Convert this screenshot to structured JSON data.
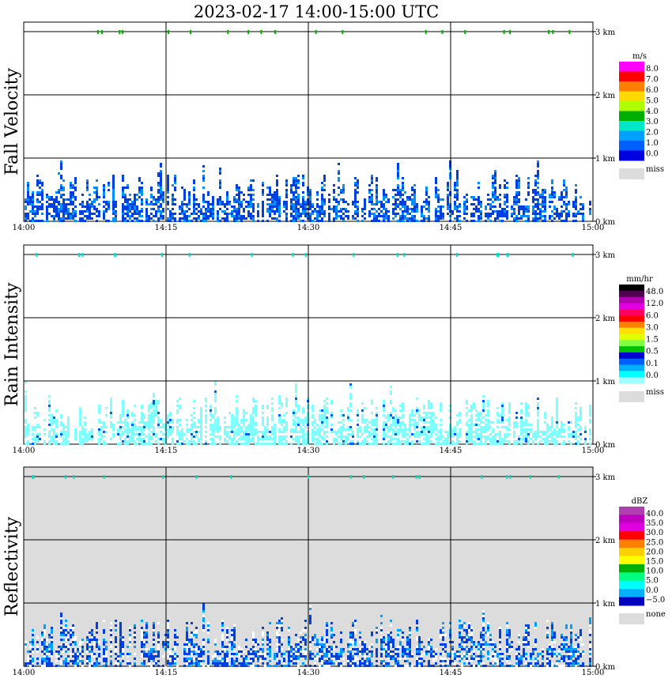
{
  "title": "2023-02-17  14:00-15:00 UTC",
  "chart_data": [
    {
      "type": "heatmap",
      "ylabel": "Fall Velocity",
      "x_ticks": [
        "14:00",
        "14:15",
        "14:30",
        "14:45",
        "15:00"
      ],
      "y_ticks": [
        "0 km",
        "1 km",
        "2 km",
        "3 km"
      ],
      "ylim_km": [
        0,
        3.0
      ],
      "background": "#ffffff",
      "grid": true,
      "colorbar": {
        "unit": "m/s",
        "labels": [
          "8.0",
          "7.0",
          "6.0",
          "5.0",
          "4.0",
          "3.0",
          "2.0",
          "1.0",
          "0.0"
        ],
        "colors": [
          "#ff00ff",
          "#ff0000",
          "#ff8000",
          "#ffd800",
          "#b0ff00",
          "#00b000",
          "#00e8c8",
          "#00a0ff",
          "#0060ff",
          "#0000e0"
        ],
        "miss_label": "miss",
        "miss_color": "#dcdcdc"
      },
      "echo_color": "#0040e0"
    },
    {
      "type": "heatmap",
      "ylabel": "Rain Intensity",
      "x_ticks": [
        "14:00",
        "14:15",
        "14:30",
        "14:45",
        "15:00"
      ],
      "y_ticks": [
        "0 km",
        "1 km",
        "2 km",
        "3 km"
      ],
      "ylim_km": [
        0,
        3.0
      ],
      "background": "#ffffff",
      "grid": true,
      "colorbar": {
        "unit": "mm/hr",
        "labels": [
          "48.0",
          "12.0",
          "6.0",
          "3.0",
          "1.5",
          "0.5",
          "0.1",
          "0.0"
        ],
        "colors": [
          "#000000",
          "#500050",
          "#b000b0",
          "#e000e0",
          "#ff0060",
          "#ff0000",
          "#ff8000",
          "#ffe000",
          "#e0ff00",
          "#80ff40",
          "#00c000",
          "#0000d0",
          "#0060ff",
          "#00b0ff",
          "#00ffff",
          "#a0ffff"
        ],
        "miss_label": "miss",
        "miss_color": "#dcdcdc"
      },
      "echo_color": "#80ffff"
    },
    {
      "type": "heatmap",
      "ylabel": "Reflectivity",
      "x_ticks": [
        "14:00",
        "14:15",
        "14:30",
        "14:45",
        "15:00"
      ],
      "y_ticks": [
        "0 km",
        "1 km",
        "2 km",
        "3 km"
      ],
      "ylim_km": [
        0,
        3.0
      ],
      "background": "#dcdcdc",
      "grid": true,
      "colorbar": {
        "unit": "dBZ",
        "labels": [
          "40.0",
          "35.0",
          "30.0",
          "25.0",
          "20.0",
          "15.0",
          "10.0",
          "5.0",
          "0.0",
          "−5.0"
        ],
        "colors": [
          "#b040b0",
          "#c000c0",
          "#e000e0",
          "#ff0000",
          "#ff8000",
          "#ffd000",
          "#ffff00",
          "#00b000",
          "#00ff80",
          "#00ffff",
          "#00b0ff",
          "#0000c0"
        ],
        "none_label": "none",
        "none_color": "#dcdcdc"
      },
      "echo_color": "#0040e0"
    }
  ]
}
